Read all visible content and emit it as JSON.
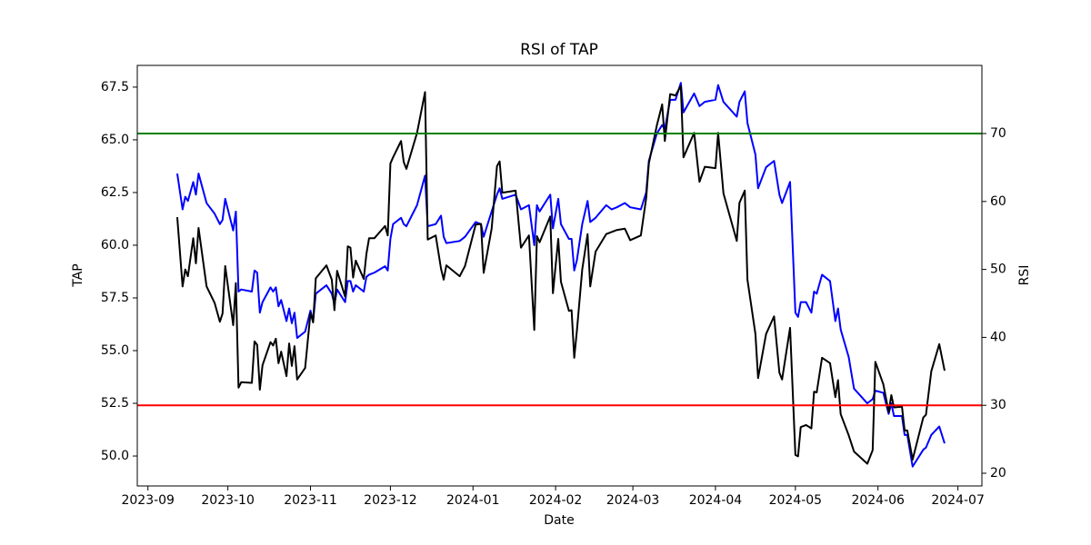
{
  "chart_data": {
    "type": "line",
    "title": "RSI of TAP",
    "xlabel": "Date",
    "ylabel": "TAP",
    "y2label": "RSI",
    "x": [
      "2023-09-12",
      "2023-09-14",
      "2023-09-15",
      "2023-09-16",
      "2023-09-18",
      "2023-09-19",
      "2023-09-20",
      "2023-09-23",
      "2023-09-26",
      "2023-09-28",
      "2023-09-29",
      "2023-09-30",
      "2023-10-03",
      "2023-10-04",
      "2023-10-05",
      "2023-10-06",
      "2023-10-10",
      "2023-10-11",
      "2023-10-12",
      "2023-10-13",
      "2023-10-14",
      "2023-10-17",
      "2023-10-18",
      "2023-10-19",
      "2023-10-20",
      "2023-10-21",
      "2023-10-23",
      "2023-10-24",
      "2023-10-25",
      "2023-10-26",
      "2023-10-27",
      "2023-10-30",
      "2023-11-01",
      "2023-11-02",
      "2023-11-03",
      "2023-11-07",
      "2023-11-09",
      "2023-11-10",
      "2023-11-11",
      "2023-11-14",
      "2023-11-15",
      "2023-11-16",
      "2023-11-17",
      "2023-11-18",
      "2023-11-21",
      "2023-11-22",
      "2023-11-23",
      "2023-11-25",
      "2023-11-29",
      "2023-11-30",
      "2023-12-01",
      "2023-12-02",
      "2023-12-05",
      "2023-12-06",
      "2023-12-07",
      "2023-12-11",
      "2023-12-14",
      "2023-12-15",
      "2023-12-18",
      "2023-12-20",
      "2023-12-21",
      "2023-12-22",
      "2023-12-27",
      "2023-12-29",
      "2024-01-02",
      "2024-01-04",
      "2024-01-05",
      "2024-01-08",
      "2024-01-10",
      "2024-01-11",
      "2024-01-12",
      "2024-01-17",
      "2024-01-19",
      "2024-01-22",
      "2024-01-24",
      "2024-01-25",
      "2024-01-26",
      "2024-01-30",
      "2024-01-31",
      "2024-02-02",
      "2024-02-03",
      "2024-02-06",
      "2024-02-07",
      "2024-02-08",
      "2024-02-09",
      "2024-02-11",
      "2024-02-13",
      "2024-02-14",
      "2024-02-16",
      "2024-02-20",
      "2024-02-22",
      "2024-02-24",
      "2024-02-27",
      "2024-02-29",
      "2024-03-04",
      "2024-03-06",
      "2024-03-07",
      "2024-03-10",
      "2024-03-12",
      "2024-03-13",
      "2024-03-15",
      "2024-03-17",
      "2024-03-19",
      "2024-03-20",
      "2024-03-24",
      "2024-03-26",
      "2024-03-28",
      "2024-04-01",
      "2024-04-02",
      "2024-04-04",
      "2024-04-09",
      "2024-04-10",
      "2024-04-12",
      "2024-04-13",
      "2024-04-16",
      "2024-04-17",
      "2024-04-20",
      "2024-04-23",
      "2024-04-25",
      "2024-04-26",
      "2024-04-29",
      "2024-05-01",
      "2024-05-02",
      "2024-05-03",
      "2024-05-05",
      "2024-05-07",
      "2024-05-08",
      "2024-05-09",
      "2024-05-11",
      "2024-05-14",
      "2024-05-16",
      "2024-05-17",
      "2024-05-18",
      "2024-05-21",
      "2024-05-23",
      "2024-05-28",
      "2024-05-30",
      "2024-05-31",
      "2024-06-03",
      "2024-06-05",
      "2024-06-06",
      "2024-06-07",
      "2024-06-10",
      "2024-06-11",
      "2024-06-12",
      "2024-06-14",
      "2024-06-18",
      "2024-06-19",
      "2024-06-21",
      "2024-06-24",
      "2024-06-26"
    ],
    "series": [
      {
        "color": "blue",
        "values": [
          63.4,
          61.7,
          62.3,
          62.1,
          63.0,
          62.4,
          63.4,
          62.0,
          61.5,
          61.0,
          61.2,
          62.2,
          60.7,
          61.6,
          57.8,
          57.9,
          57.8,
          58.8,
          58.7,
          56.8,
          57.3,
          58.0,
          57.8,
          58.0,
          57.1,
          57.4,
          56.4,
          57.0,
          56.3,
          56.8,
          55.6,
          55.9,
          56.9,
          56.4,
          57.7,
          58.1,
          57.7,
          57.2,
          57.9,
          57.3,
          58.3,
          58.3,
          57.8,
          58.1,
          57.8,
          58.5,
          58.6,
          58.7,
          59.0,
          58.8,
          60.3,
          61.0,
          61.3,
          61.0,
          60.9,
          61.9,
          63.3,
          60.9,
          61.0,
          61.4,
          60.4,
          60.1,
          60.2,
          60.4,
          61.1,
          61.0,
          60.4,
          61.6,
          62.4,
          62.7,
          62.2,
          62.4,
          61.7,
          61.9,
          60.0,
          61.9,
          61.6,
          62.4,
          60.8,
          62.2,
          61.0,
          60.3,
          60.3,
          58.8,
          59.3,
          61.0,
          62.1,
          61.1,
          61.3,
          61.9,
          61.7,
          61.8,
          62.0,
          61.8,
          61.7,
          62.5,
          64.0,
          65.3,
          65.7,
          65.5,
          66.9,
          66.9,
          67.7,
          66.3,
          67.2,
          66.6,
          66.8,
          66.9,
          67.6,
          66.8,
          66.1,
          66.8,
          67.3,
          65.8,
          64.3,
          62.7,
          63.7,
          64.0,
          62.4,
          62.0,
          63.0,
          56.8,
          56.6,
          57.3,
          57.3,
          56.8,
          57.8,
          57.7,
          58.6,
          58.3,
          56.4,
          57.0,
          56.0,
          54.7,
          53.2,
          52.5,
          52.7,
          53.1,
          53.0,
          52.0,
          52.5,
          51.9,
          51.9,
          51.0,
          51.0,
          49.5,
          50.3,
          50.4,
          51.0,
          51.4,
          50.6
        ]
      },
      {
        "color": "black",
        "axis": "y2",
        "values": [
          57.7,
          47.5,
          50,
          49,
          54.6,
          50.9,
          56.1,
          47.5,
          45.1,
          42.3,
          43.5,
          50.5,
          41.8,
          48,
          32.6,
          33.4,
          33.3,
          39.4,
          38.9,
          32.3,
          35.9,
          39.3,
          38.8,
          39.8,
          36.2,
          37.9,
          34.3,
          39.1,
          35.8,
          38.7,
          33.8,
          35.5,
          43.6,
          42.2,
          48.7,
          50.6,
          48.5,
          44,
          49.8,
          46,
          53.4,
          53.2,
          48.8,
          51.3,
          48.6,
          52.3,
          54.6,
          54.6,
          56.4,
          55,
          65.6,
          66.5,
          68.9,
          65.8,
          64.8,
          70.1,
          76.1,
          54.4,
          55,
          50.1,
          48.5,
          50.6,
          49.0,
          50.5,
          56.6,
          56.7,
          49.5,
          56,
          65.2,
          65.9,
          61.3,
          61.6,
          53.2,
          55,
          41.1,
          54.9,
          54,
          57.8,
          46.5,
          54.5,
          48.2,
          43.9,
          44,
          37,
          41,
          50,
          55.2,
          47.5,
          52.6,
          55.2,
          55.5,
          55.8,
          56,
          54.3,
          55,
          60.5,
          65.6,
          71.2,
          74.3,
          68.9,
          75.8,
          75.6,
          77,
          66.5,
          70.1,
          62.9,
          65.1,
          64.9,
          70.1,
          61.2,
          54.2,
          59.8,
          61.6,
          48.5,
          40.5,
          34,
          40.5,
          43.1,
          34.8,
          33.8,
          41.4,
          22.7,
          22.5,
          26.8,
          27.1,
          26.6,
          32,
          31.9,
          37,
          36.2,
          31.2,
          33.7,
          28.7,
          25.6,
          23.2,
          21.4,
          23.4,
          36.4,
          33.1,
          29,
          31.5,
          29.7,
          29.8,
          26.3,
          26.3,
          22,
          28.2,
          28.6,
          35,
          39,
          35.1
        ]
      }
    ],
    "hlines": [
      {
        "value": 70,
        "color": "green",
        "axis": "y2"
      },
      {
        "value": 30,
        "color": "red",
        "axis": "y2"
      }
    ],
    "xlim": [
      "2023-08-28",
      "2024-07-10"
    ],
    "xticks": [
      {
        "value": "2023-09-01",
        "label": "2023-09"
      },
      {
        "value": "2023-10-01",
        "label": "2023-10"
      },
      {
        "value": "2023-11-01",
        "label": "2023-11"
      },
      {
        "value": "2023-12-01",
        "label": "2023-12"
      },
      {
        "value": "2024-01-01",
        "label": "2024-01"
      },
      {
        "value": "2024-02-01",
        "label": "2024-02"
      },
      {
        "value": "2024-03-01",
        "label": "2024-03"
      },
      {
        "value": "2024-04-01",
        "label": "2024-04"
      },
      {
        "value": "2024-05-01",
        "label": "2024-05"
      },
      {
        "value": "2024-06-01",
        "label": "2024-06"
      },
      {
        "value": "2024-07-01",
        "label": "2024-07"
      }
    ],
    "ylim": [
      48.58,
      68.53
    ],
    "yticks": [
      {
        "value": 50,
        "label": "50.0"
      },
      52.5,
      {
        "value": 55,
        "label": "55.0"
      },
      57.5,
      {
        "value": 60,
        "label": "60.0"
      },
      62.5,
      {
        "value": 65,
        "label": "65.0"
      },
      67.5
    ],
    "y2lim": [
      18.13,
      80.03
    ],
    "y2ticks": [
      20,
      30,
      40,
      50,
      60,
      70
    ],
    "ylabel_color": "blue"
  }
}
